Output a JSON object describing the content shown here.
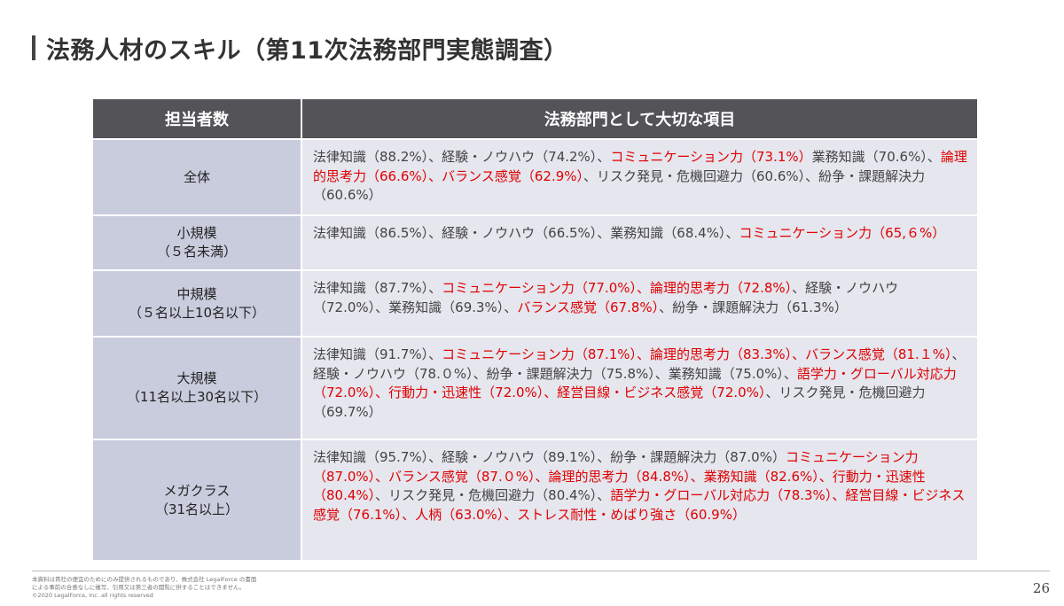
{
  "title": "法務人材のスキル（第11次法務部門実態調査）",
  "table": {
    "headers": [
      "担当者数",
      "法務部門として大切な項目"
    ],
    "rows": [
      {
        "category": [
          "全体"
        ],
        "height": 86,
        "segments": [
          {
            "text": "法律知識（88.2%）、経験・ノウハウ（74.2%）、",
            "red": false
          },
          {
            "text": "コミュニケーション力（73.1%）",
            "red": true
          },
          {
            "text": "業務知識（70.6%）、",
            "red": false
          },
          {
            "text": "論理的思考力（66.6%）、バランス感覚（62.9%）",
            "red": true
          },
          {
            "text": "、リスク発見・危機回避力（60.6%）、紛争・課題解決力（60.6%）",
            "red": false
          }
        ]
      },
      {
        "category": [
          "小規模",
          "（５名未満）"
        ],
        "height": 62,
        "segments": [
          {
            "text": "法律知識（86.5%）、経験・ノウハウ（66.5%）、業務知識（68.4%）、",
            "red": false
          },
          {
            "text": "コミュニケーション力（65,６%）",
            "red": true
          }
        ]
      },
      {
        "category": [
          "中規模",
          "（５名以上10名以下）"
        ],
        "height": 75,
        "segments": [
          {
            "text": "法律知識（87.7%）、",
            "red": false
          },
          {
            "text": "コミュニケーション力（77.0%）、論理的思考力（72.8%）",
            "red": true
          },
          {
            "text": "、経験・ノウハウ（72.0%）、業務知識（69.3%）、",
            "red": false
          },
          {
            "text": "バランス感覚（67.8%）",
            "red": true
          },
          {
            "text": "、紛争・課題解決力（61.3%）",
            "red": false
          }
        ]
      },
      {
        "category": [
          "大規模",
          "（11名以上30名以下）"
        ],
        "height": 116,
        "segments": [
          {
            "text": "法律知識（91.7%）、",
            "red": false
          },
          {
            "text": "コミュニケーション力（87.1%）、論理的思考力（83.3%）、バランス感覚（81.１%）",
            "red": true
          },
          {
            "text": "、経験・ノウハウ（78.０%）、紛争・課題解決力（75.8%）、業務知識（75.0%）、",
            "red": false
          },
          {
            "text": "語学力・グローバル対応力（72.0%）、行動力・迅速性（72.0%）、経営目線・ビジネス感覚（72.0%）",
            "red": true
          },
          {
            "text": "、リスク発見・危機回避力（69.7%）",
            "red": false
          }
        ]
      },
      {
        "category": [
          "メガクラス",
          "（31名以上）"
        ],
        "height": 137,
        "segments": [
          {
            "text": "法律知識（95.7%）、経験・ノウハウ（89.1%）、紛争・課題解決力（87.0%）",
            "red": false
          },
          {
            "text": "コミュニケーション力（87.0%）、バランス感覚（87.０%）、論理的思考力（84.8%）、業務知識（82.6%）、行動力・迅速性（80.4%）",
            "red": true
          },
          {
            "text": "、リスク発見・危機回避力（80.4%）、",
            "red": false
          },
          {
            "text": "語学力・グローバル対応力（78.3%）、経営目線・ビジネス感覚（76.1%）、人柄（63.0%）、ストレス耐性・めばり強さ（60.9%）",
            "red": true
          }
        ]
      }
    ]
  },
  "footer": {
    "lines": [
      "本資料は貴社の便宜のためにのみ提供されるものであり、株式会社 LegalForce の書面",
      "による事前の合意なしに複写、引用又は第三者の閲覧に供することはできません。",
      "©2020 LegalForce, Inc. all rights reserved"
    ],
    "page_number": "26"
  }
}
